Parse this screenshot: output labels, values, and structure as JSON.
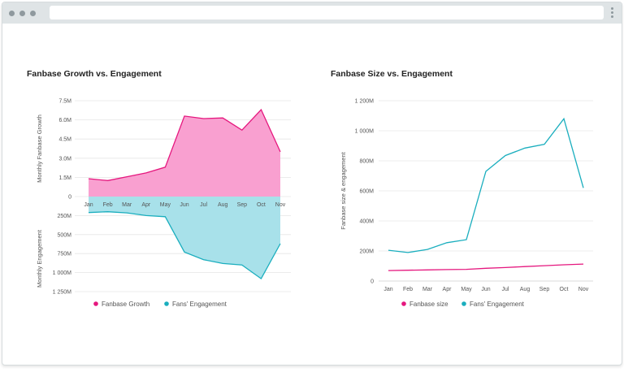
{
  "colors": {
    "pink": "#e5177e",
    "pink_fill": "#f9a0d0",
    "teal": "#1aaebe",
    "teal_fill": "#a8e1ea"
  },
  "icons": [
    "window-dot-icon",
    "kebab-menu-icon",
    "legend-dot-icon"
  ],
  "chart_data": [
    {
      "type": "area",
      "title": "Fanbase Growth vs. Engagement",
      "categories": [
        "Jan",
        "Feb",
        "Mar",
        "Apr",
        "May",
        "Jun",
        "Jul",
        "Aug",
        "Sep",
        "Oct",
        "Nov"
      ],
      "top_axis": {
        "ylabel": "Monthly Fanbase Growth",
        "ylim": [
          0,
          7.5
        ],
        "ticks": [
          "0",
          "1.5M",
          "3.0M",
          "4.5M",
          "6.0M",
          "7.5M"
        ]
      },
      "bottom_axis": {
        "ylabel": "Monthly Engagement",
        "ylim": [
          0,
          1250
        ],
        "ticks": [
          "250M",
          "500M",
          "750M",
          "1 000M",
          "1 250M"
        ]
      },
      "series": [
        {
          "name": "Fanbase Growth",
          "values": [
            1.4,
            1.25,
            1.55,
            1.85,
            2.3,
            6.3,
            6.1,
            6.15,
            5.2,
            6.8,
            3.5
          ]
        },
        {
          "name": "Fans' Engagement",
          "values": [
            210,
            200,
            215,
            250,
            265,
            730,
            830,
            880,
            900,
            1080,
            620
          ]
        }
      ],
      "grid": true,
      "legend": "bottom"
    },
    {
      "type": "line",
      "title": "Fanbase Size vs. Engagement",
      "categories": [
        "Jan",
        "Feb",
        "Mar",
        "Apr",
        "May",
        "Jun",
        "Jul",
        "Aug",
        "Sep",
        "Oct",
        "Nov"
      ],
      "ylabel": "Fanbase size & engagement",
      "ylim": [
        0,
        1200
      ],
      "ticks": [
        "0",
        "200M",
        "400M",
        "600M",
        "800M",
        "1 000M",
        "1 200M"
      ],
      "series": [
        {
          "name": "Fanbase size",
          "values": [
            70,
            72,
            74,
            76,
            78,
            85,
            90,
            96,
            102,
            108,
            113
          ]
        },
        {
          "name": "Fans' Engagement",
          "values": [
            205,
            190,
            210,
            255,
            275,
            730,
            835,
            885,
            910,
            1080,
            620
          ]
        }
      ],
      "grid": true,
      "legend": "bottom"
    }
  ]
}
